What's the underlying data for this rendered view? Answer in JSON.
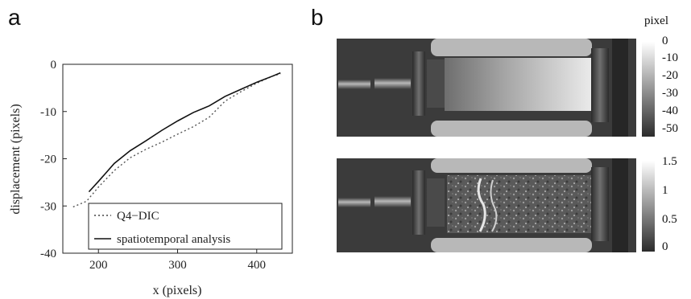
{
  "panel_labels": {
    "a": "a",
    "b": "b"
  },
  "chart_data": {
    "type": "line",
    "xlabel": "x (pixels)",
    "ylabel": "displacement (pixels)",
    "xlim": [
      155,
      445
    ],
    "ylim": [
      -40,
      0
    ],
    "xticks": [
      200,
      300,
      400
    ],
    "yticks": [
      0,
      -10,
      -20,
      -30,
      -40
    ],
    "legend_placement": "bottom-right",
    "grid": false,
    "series": [
      {
        "name": "Q4−DIC",
        "style": "dotted",
        "x": [
          168,
          185,
          200,
          220,
          240,
          260,
          280,
          300,
          320,
          340,
          360,
          380,
          400,
          420,
          430
        ],
        "y": [
          -30.2,
          -29.0,
          -26.0,
          -22.5,
          -19.8,
          -18.0,
          -16.5,
          -14.8,
          -13.2,
          -11.2,
          -7.8,
          -5.8,
          -4.0,
          -2.5,
          -2.0
        ]
      },
      {
        "name": "spatiotemporal analysis",
        "style": "solid",
        "x": [
          188,
          200,
          220,
          240,
          260,
          280,
          300,
          320,
          340,
          360,
          380,
          400,
          420,
          430
        ],
        "y": [
          -27.0,
          -24.8,
          -21.0,
          -18.3,
          -16.2,
          -14.0,
          -12.0,
          -10.2,
          -8.8,
          -6.8,
          -5.3,
          -3.8,
          -2.5,
          -1.8
        ]
      }
    ]
  },
  "colorbars": [
    {
      "title": "pixel",
      "ticks": [
        "0",
        "-10",
        "-20",
        "-30",
        "-40",
        "-50"
      ]
    },
    {
      "title": "",
      "ticks": [
        "1.5",
        "1",
        "0.5",
        "0"
      ]
    }
  ]
}
